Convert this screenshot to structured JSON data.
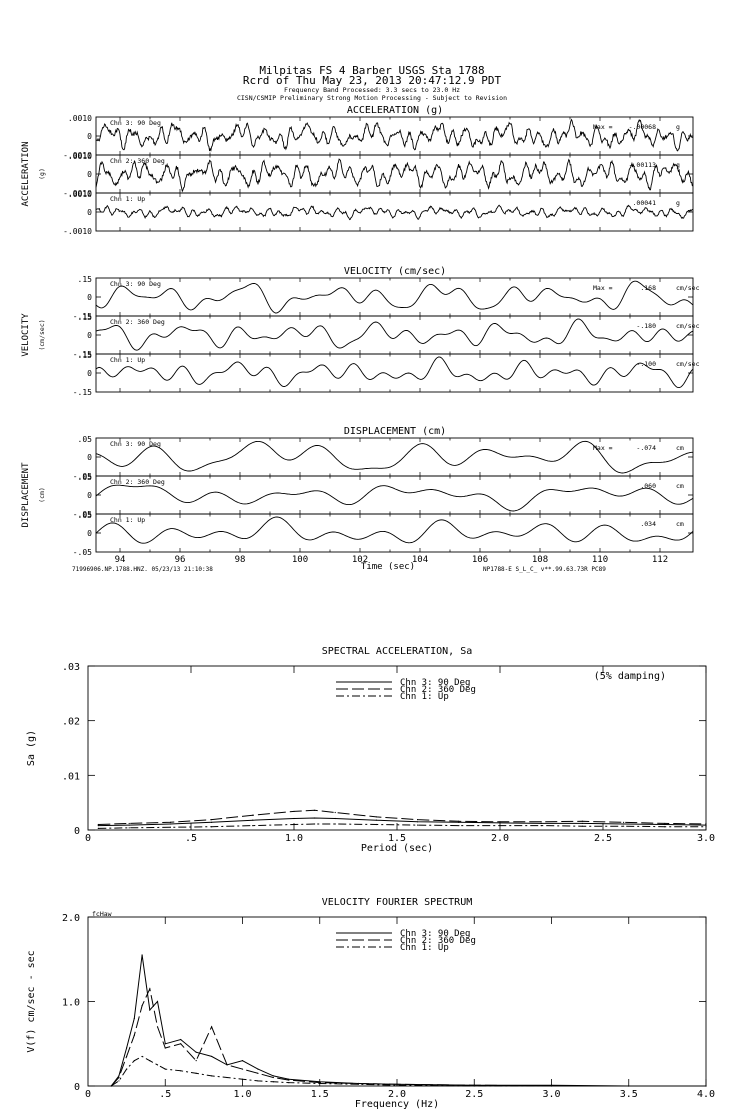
{
  "header": {
    "station": "Milpitas FS 4 Barber    USGS Sta 1788",
    "record": "Rcrd of Thu May 23, 2013 20:47:12.9 PDT",
    "band": "Frequency Band Processed: 3.3 secs to 23.0 Hz",
    "notice": "CISN/CSMIP Preliminary Strong Motion Processing - Subject to Revision"
  },
  "time_series": {
    "time_axis": {
      "label": "Time (sec)",
      "xlim": [
        93.2,
        113.1
      ],
      "ticks": [
        94,
        96,
        98,
        100,
        102,
        104,
        106,
        108,
        110,
        112
      ],
      "tick_labels": [
        "94",
        "96",
        "98",
        "100",
        "102",
        "104",
        "106",
        "108",
        "110",
        "112"
      ]
    },
    "footer_left": "71996906.NP.1788.HNZ. 05/23/13 21:10:38",
    "footer_right": "NP1788-E  S_L_C_  v**.99.63.73R PC89",
    "max_prefix": "Max =",
    "panels": [
      {
        "title": "ACCELERATION (g)",
        "side_label": "ACCELERATION",
        "side_unit": "(g)",
        "unit": "g",
        "top_label": ".0010",
        "bottom_label": "-.0010",
        "zero_label": "0",
        "ylim": [
          -0.001,
          0.001
        ],
        "channels": [
          {
            "name": "Chn 3: 90 Deg",
            "max": "-.00068"
          },
          {
            "name": "Chn 2: 360 Deg",
            "max": "-.00113"
          },
          {
            "name": "Chn 1: Up",
            "max": ".00041"
          }
        ]
      },
      {
        "title": "VELOCITY (cm/sec)",
        "side_label": "VELOCITY",
        "side_unit": "(cm/sec)",
        "unit": "cm/sec",
        "top_label": ".15",
        "bottom_label": "-.15",
        "zero_label": "0",
        "ylim": [
          -0.15,
          0.15
        ],
        "channels": [
          {
            "name": "Chn 3: 90 Deg",
            "max": ".168"
          },
          {
            "name": "Chn 2: 360 Deg",
            "max": "-.180"
          },
          {
            "name": "Chn 1: Up",
            "max": "-.100"
          }
        ]
      },
      {
        "title": "DISPLACEMENT (cm)",
        "side_label": "DISPLACEMENT",
        "side_unit": "(cm)",
        "unit": "cm",
        "top_label": ".05",
        "bottom_label": "-.05",
        "zero_label": "0",
        "ylim": [
          -0.05,
          0.05
        ],
        "channels": [
          {
            "name": "Chn 3: 90 Deg",
            "max": "-.074"
          },
          {
            "name": "Chn 2: 360 Deg",
            "max": ".060"
          },
          {
            "name": "Chn 1: Up",
            "max": ".034"
          }
        ]
      }
    ]
  },
  "chart_data": [
    {
      "type": "line",
      "title": "SPECTRAL ACCELERATION, Sa",
      "xlabel": "Period (sec)",
      "ylabel": "Sa (g)",
      "xlim": [
        0,
        3.0
      ],
      "ylim": [
        0,
        0.03
      ],
      "x_ticks": [
        0.5,
        1.0,
        1.5,
        2.0,
        2.5,
        3.0
      ],
      "x_tick_labels": [
        ".5",
        "1.0",
        "1.5",
        "2.0",
        "2.5",
        "3.0"
      ],
      "y_ticks": [
        0,
        0.01,
        0.02,
        0.03
      ],
      "y_tick_labels": [
        "0",
        ".01",
        ".02",
        ".03"
      ],
      "annotation": "(5% damping)",
      "legend_position": "top-center",
      "x": [
        0.05,
        0.2,
        0.4,
        0.6,
        0.8,
        1.0,
        1.1,
        1.2,
        1.4,
        1.6,
        1.8,
        2.0,
        2.2,
        2.4,
        2.6,
        2.8,
        3.0
      ],
      "series": [
        {
          "name": "Chn 3: 90 Deg",
          "dash": "solid",
          "values": [
            0.0008,
            0.0009,
            0.0011,
            0.0014,
            0.0018,
            0.0021,
            0.0022,
            0.0021,
            0.0018,
            0.0015,
            0.0014,
            0.0013,
            0.0012,
            0.0012,
            0.0011,
            0.001,
            0.0009
          ]
        },
        {
          "name": "Chn 2: 360 Deg",
          "dash": "dashed",
          "values": [
            0.001,
            0.0012,
            0.0014,
            0.0019,
            0.0027,
            0.0034,
            0.0036,
            0.0032,
            0.0024,
            0.0019,
            0.0016,
            0.0015,
            0.0015,
            0.0016,
            0.0014,
            0.0012,
            0.0011
          ]
        },
        {
          "name": "Chn 1: Up",
          "dash": "dashdot",
          "values": [
            0.0003,
            0.0004,
            0.0005,
            0.0006,
            0.0008,
            0.001,
            0.0011,
            0.0011,
            0.001,
            0.0009,
            0.0008,
            0.0008,
            0.0008,
            0.0007,
            0.0007,
            0.0006,
            0.0006
          ]
        }
      ]
    },
    {
      "type": "line",
      "title": "VELOCITY FOURIER SPECTRUM",
      "xlabel": "Frequency (Hz)",
      "ylabel": "V(f)   cm/sec - sec",
      "corner_label": "fcHaw",
      "xlim": [
        0,
        4.0
      ],
      "ylim": [
        0,
        2.0
      ],
      "x_ticks": [
        0.5,
        1.0,
        1.5,
        2.0,
        2.5,
        3.0,
        3.5,
        4.0
      ],
      "x_tick_labels": [
        ".5",
        "1.0",
        "1.5",
        "2.0",
        "2.5",
        "3.0",
        "3.5",
        "4.0"
      ],
      "y_ticks": [
        0,
        1.0,
        2.0
      ],
      "y_tick_labels": [
        "0",
        "1.0",
        "2.0"
      ],
      "legend_position": "top-center",
      "x": [
        0.15,
        0.2,
        0.25,
        0.3,
        0.35,
        0.4,
        0.45,
        0.5,
        0.6,
        0.7,
        0.8,
        0.9,
        1.0,
        1.1,
        1.2,
        1.3,
        1.5,
        1.75,
        2.0,
        2.5,
        3.0,
        3.5,
        4.0
      ],
      "series": [
        {
          "name": "Chn 3: 90 Deg",
          "dash": "solid",
          "values": [
            0.0,
            0.12,
            0.45,
            0.8,
            1.55,
            0.9,
            1.0,
            0.5,
            0.55,
            0.4,
            0.35,
            0.25,
            0.3,
            0.2,
            0.12,
            0.08,
            0.05,
            0.03,
            0.02,
            0.01,
            0.01,
            0.0,
            0.0
          ]
        },
        {
          "name": "Chn 2: 360 Deg",
          "dash": "dashed",
          "values": [
            0.0,
            0.1,
            0.35,
            0.6,
            0.95,
            1.15,
            0.7,
            0.45,
            0.5,
            0.3,
            0.7,
            0.25,
            0.2,
            0.15,
            0.1,
            0.07,
            0.04,
            0.03,
            0.02,
            0.01,
            0.0,
            0.0,
            0.0
          ]
        },
        {
          "name": "Chn 1: Up",
          "dash": "dashdot",
          "values": [
            0.0,
            0.06,
            0.2,
            0.3,
            0.35,
            0.3,
            0.25,
            0.2,
            0.18,
            0.15,
            0.12,
            0.1,
            0.08,
            0.06,
            0.05,
            0.04,
            0.03,
            0.02,
            0.01,
            0.0,
            0.0,
            0.0,
            0.0
          ]
        }
      ]
    }
  ]
}
